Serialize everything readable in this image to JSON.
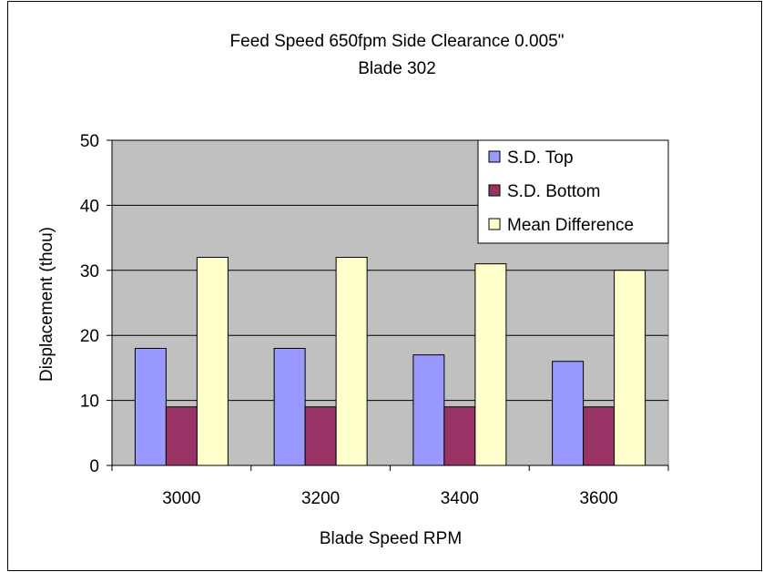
{
  "chart_data": {
    "type": "bar",
    "title": "Feed Speed 650fpm  Side Clearance 0.005\"",
    "subtitle": "Blade 302",
    "xlabel": "Blade Speed RPM",
    "ylabel": "Displacement (thou)",
    "categories": [
      "3000",
      "3200",
      "3400",
      "3600"
    ],
    "ylim": [
      0,
      50
    ],
    "yticks": [
      0,
      10,
      20,
      30,
      40,
      50
    ],
    "grid": true,
    "legend_position": "top-right",
    "plot_background": "#c0c0c0",
    "series": [
      {
        "name": "S.D. Top",
        "color": "#9999ff",
        "values": [
          18,
          18,
          17,
          16
        ]
      },
      {
        "name": "S.D. Bottom",
        "color": "#993366",
        "values": [
          9,
          9,
          9,
          9
        ]
      },
      {
        "name": "Mean Difference",
        "color": "#ffffcc",
        "values": [
          32,
          32,
          31,
          30
        ]
      }
    ]
  }
}
